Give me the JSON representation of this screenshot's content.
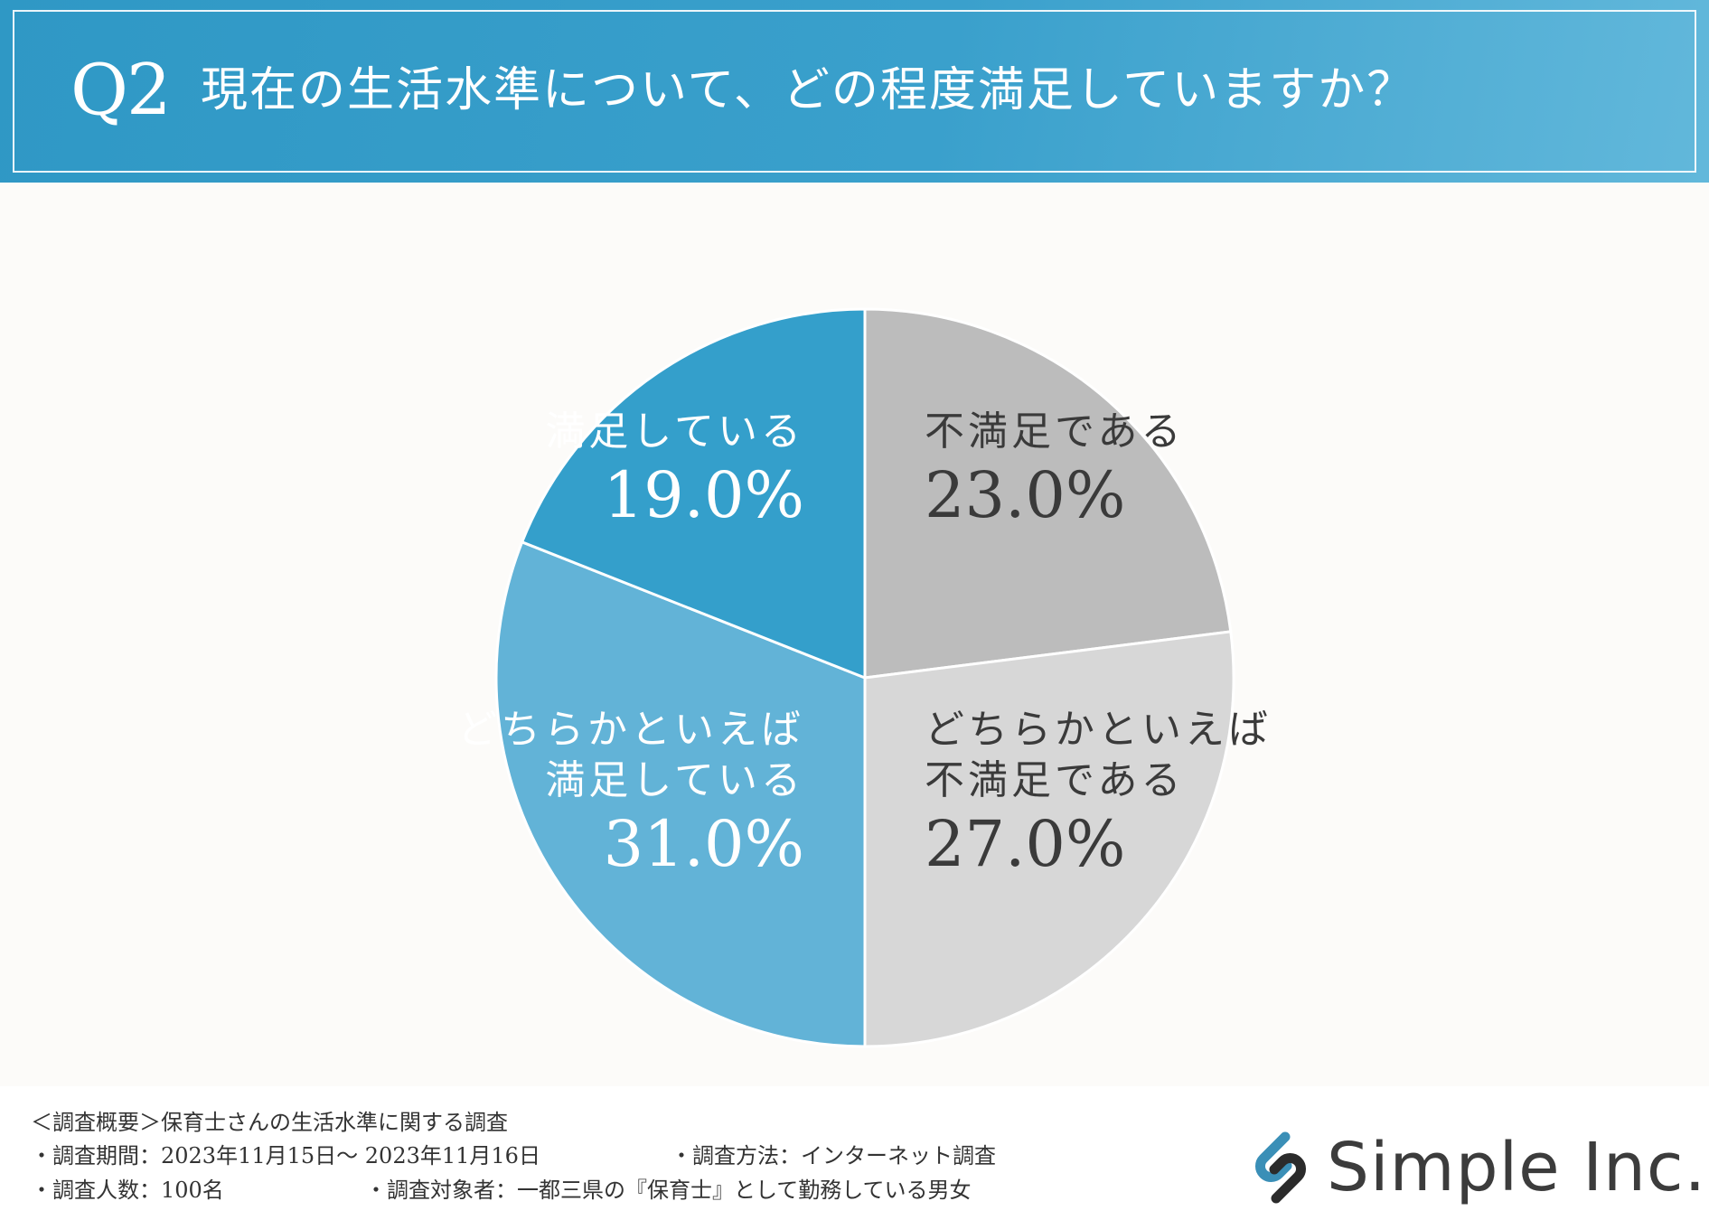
{
  "header": {
    "q_number": "Q2",
    "question": "現在の生活水準について、どの程度満足していますか？"
  },
  "chart_data": {
    "type": "pie",
    "title": "現在の生活水準について、どの程度満足していますか？",
    "unit": "%",
    "slices": [
      {
        "label": "不満足である",
        "label_lines": [
          "不満足である"
        ],
        "value": 23.0,
        "display": "23.0%",
        "color": "#bcbcbc",
        "text_color": "#3a3a3a"
      },
      {
        "label": "どちらかといえば不満足である",
        "label_lines": [
          "どちらかといえば",
          "不満足である"
        ],
        "value": 27.0,
        "display": "27.0%",
        "color": "#d7d7d7",
        "text_color": "#3a3a3a"
      },
      {
        "label": "どちらかといえば満足している",
        "label_lines": [
          "どちらかといえば",
          "満足している"
        ],
        "value": 31.0,
        "display": "31.0%",
        "color": "#62b3d7",
        "text_color": "#ffffff"
      },
      {
        "label": "満足している",
        "label_lines": [
          "満足している"
        ],
        "value": 19.0,
        "display": "19.0%",
        "color": "#349fcb",
        "text_color": "#ffffff"
      }
    ],
    "start": "12 o'clock",
    "direction": "clockwise",
    "legend": "none"
  },
  "footer": {
    "overview": "＜調査概要＞保育士さんの生活水準に関する調査",
    "period": "・調査期間：2023年11月15日～ 2023年11月16日",
    "method": "・調査方法：インターネット調査",
    "count": "・調査人数：100名",
    "target": "・調査対象者：一都三県の『保育士』として勤務している男女"
  },
  "brand": {
    "name": "Simple Inc.",
    "logo_icon": "simple-logo-icon",
    "logo_color": "#3a8fb7"
  }
}
